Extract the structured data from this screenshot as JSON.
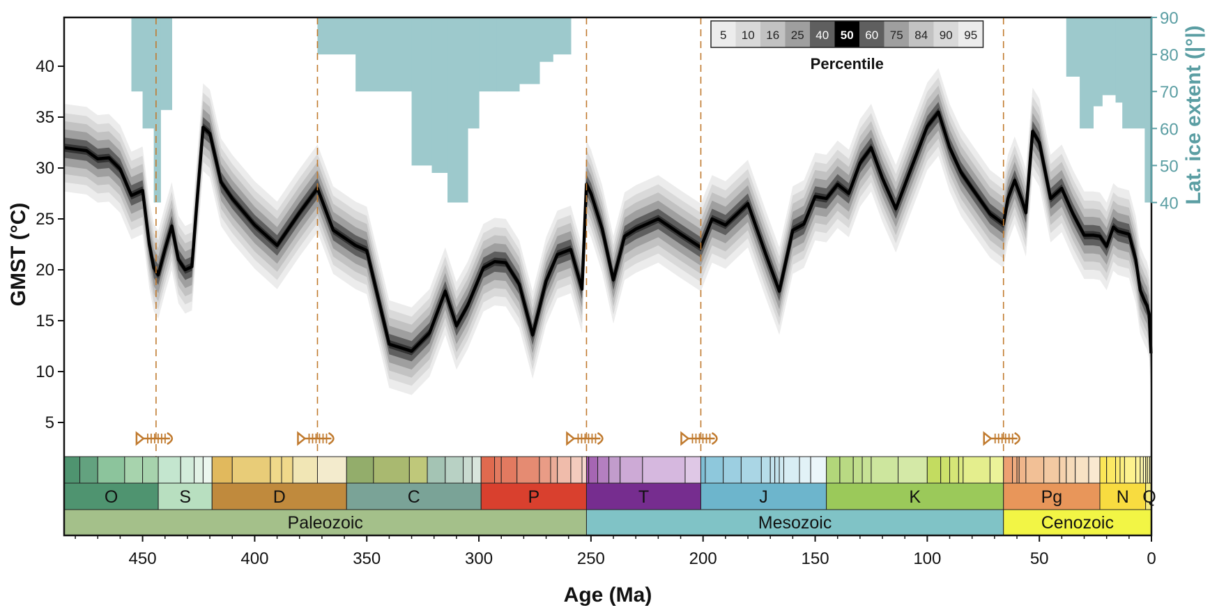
{
  "chart_data": {
    "type": "area",
    "xlabel": "Age (Ma)",
    "ylabel": "GMST (°C)",
    "y2label": "Lat. ice extent (|°|)",
    "xlim": [
      485,
      0
    ],
    "x_ticks": [
      450,
      400,
      350,
      300,
      250,
      200,
      150,
      100,
      50,
      0
    ],
    "y_ticks": [
      5,
      10,
      15,
      20,
      25,
      30,
      35,
      40
    ],
    "y2_ticks": [
      90,
      80,
      70,
      60,
      50,
      40
    ],
    "legend": {
      "title": "Percentile",
      "placement": "top-center",
      "labels": [
        "5",
        "10",
        "16",
        "25",
        "40",
        "50",
        "60",
        "75",
        "84",
        "90",
        "95"
      ],
      "colors": [
        "#ececec",
        "#d9d9d9",
        "#c2c2c2",
        "#9f9f9f",
        "#5f5f5f",
        "#000000",
        "#5f5f5f",
        "#9f9f9f",
        "#c2c2c2",
        "#d9d9d9",
        "#ececec"
      ]
    },
    "series": [
      {
        "percentile": "50",
        "x": [
          485,
          475,
          470,
          465,
          460,
          455,
          450,
          447,
          445,
          443,
          440,
          437,
          434,
          431,
          428,
          426,
          423,
          420,
          415,
          410,
          400,
          390,
          380,
          372,
          365,
          355,
          350,
          340,
          330,
          322,
          315,
          310,
          305,
          298,
          293,
          288,
          282,
          276,
          270,
          265,
          259,
          254,
          252,
          250,
          245,
          240,
          235,
          230,
          220,
          210,
          201,
          196,
          190,
          180,
          172,
          166,
          160,
          155,
          150,
          145,
          140,
          135,
          130,
          125,
          120,
          114,
          108,
          100,
          95,
          90,
          85,
          80,
          72,
          66,
          64,
          61,
          58,
          56,
          53,
          50,
          45,
          40,
          35,
          30,
          26,
          23,
          20,
          17,
          15,
          10,
          7,
          5,
          3,
          2,
          1,
          0.5,
          0.2
        ],
        "values": [
          32.0,
          31.7,
          30.9,
          31.0,
          29.9,
          27.3,
          27.8,
          22.5,
          20.2,
          19.5,
          22.0,
          24.3,
          21.0,
          20.0,
          20.3,
          26.0,
          34.0,
          33.4,
          28.6,
          27.0,
          24.4,
          22.4,
          25.6,
          28.0,
          23.9,
          22.4,
          21.9,
          12.7,
          12.0,
          13.8,
          17.9,
          14.5,
          16.5,
          20.2,
          20.8,
          20.7,
          18.6,
          13.6,
          18.9,
          21.5,
          22.0,
          18.1,
          28.4,
          27.5,
          24.0,
          19.0,
          23.3,
          24.0,
          25.0,
          23.5,
          22.2,
          25.0,
          24.4,
          26.5,
          21.5,
          17.9,
          23.9,
          24.5,
          27.2,
          27.0,
          28.4,
          27.5,
          30.5,
          32.0,
          29.0,
          26.0,
          29.5,
          34.1,
          35.5,
          32.0,
          29.6,
          28.0,
          25.5,
          24.5,
          27.0,
          28.8,
          27.0,
          25.6,
          33.6,
          32.5,
          27.0,
          28.0,
          25.5,
          23.4,
          23.4,
          23.3,
          22.3,
          24.2,
          23.8,
          23.5,
          21.0,
          18.0,
          16.9,
          16.5,
          15.6,
          13.0,
          11.8
        ]
      }
    ],
    "band_half_widths": {
      "45_55": 0.4,
      "40_60": 1.0,
      "25_75": 1.8,
      "16_84": 2.6,
      "10_90": 3.4,
      "5_95": 4.3
    },
    "ice_extent": {
      "unit": "|°| latitude",
      "baseline": 90,
      "segments": [
        {
          "x": [
            455,
            450
          ],
          "lat": 70
        },
        {
          "x": [
            450,
            445
          ],
          "lat": 60
        },
        {
          "x": [
            445,
            442
          ],
          "lat": 40
        },
        {
          "x": [
            442,
            437
          ],
          "lat": 65
        },
        {
          "x": [
            372,
            355
          ],
          "lat": 80
        },
        {
          "x": [
            355,
            330
          ],
          "lat": 70
        },
        {
          "x": [
            330,
            321
          ],
          "lat": 50
        },
        {
          "x": [
            321,
            314
          ],
          "lat": 48
        },
        {
          "x": [
            314,
            305
          ],
          "lat": 40
        },
        {
          "x": [
            305,
            300
          ],
          "lat": 60
        },
        {
          "x": [
            300,
            292
          ],
          "lat": 70
        },
        {
          "x": [
            292,
            282
          ],
          "lat": 70
        },
        {
          "x": [
            282,
            273
          ],
          "lat": 72
        },
        {
          "x": [
            273,
            267
          ],
          "lat": 78
        },
        {
          "x": [
            267,
            259
          ],
          "lat": 80
        },
        {
          "x": [
            38,
            32
          ],
          "lat": 74
        },
        {
          "x": [
            32,
            26
          ],
          "lat": 60
        },
        {
          "x": [
            26,
            22
          ],
          "lat": 66
        },
        {
          "x": [
            22,
            16
          ],
          "lat": 69
        },
        {
          "x": [
            16,
            13
          ],
          "lat": 67
        },
        {
          "x": [
            13,
            3
          ],
          "lat": 60
        },
        {
          "x": [
            3,
            0
          ],
          "lat": 40
        }
      ]
    },
    "extinction_events": [
      444,
      372,
      252,
      201,
      66
    ],
    "periods": [
      {
        "label": "O",
        "start": 485,
        "end": 443,
        "color": "#4f9470"
      },
      {
        "label": "S",
        "start": 443,
        "end": 419,
        "color": "#b8dfc0"
      },
      {
        "label": "D",
        "start": 419,
        "end": 359,
        "color": "#c08a3d"
      },
      {
        "label": "C",
        "start": 359,
        "end": 299,
        "color": "#7aa397"
      },
      {
        "label": "P",
        "start": 299,
        "end": 252,
        "color": "#d9402e"
      },
      {
        "label": "T",
        "start": 252,
        "end": 201,
        "color": "#762d8f"
      },
      {
        "label": "J",
        "start": 201,
        "end": 145,
        "color": "#6db5cc"
      },
      {
        "label": "K",
        "start": 145,
        "end": 66,
        "color": "#9bc95a"
      },
      {
        "label": "Pg",
        "start": 66,
        "end": 23,
        "color": "#e8965a"
      },
      {
        "label": "N",
        "start": 23,
        "end": 2.6,
        "color": "#f8dc40"
      },
      {
        "label": "Q",
        "start": 2.6,
        "end": 0,
        "color": "#f6ec7e"
      }
    ],
    "eras": [
      {
        "label": "Paleozoic",
        "start": 485,
        "end": 252,
        "color": "#a4c08a"
      },
      {
        "label": "Mesozoic",
        "start": 252,
        "end": 66,
        "color": "#80c3c6"
      },
      {
        "label": "Cenozoic",
        "start": 66,
        "end": 0,
        "color": "#f2f545"
      }
    ],
    "epochs": [
      {
        "start": 485,
        "end": 478,
        "color": "#4f9470"
      },
      {
        "start": 478,
        "end": 470,
        "color": "#63a27f"
      },
      {
        "start": 470,
        "end": 458,
        "color": "#8cc49c"
      },
      {
        "start": 458,
        "end": 450,
        "color": "#a7d3ad"
      },
      {
        "start": 450,
        "end": 443,
        "color": "#a7d3ad"
      },
      {
        "start": 443,
        "end": 433,
        "color": "#c4e6cf"
      },
      {
        "start": 433,
        "end": 427,
        "color": "#d3ecdb"
      },
      {
        "start": 427,
        "end": 423,
        "color": "#e2f2e6"
      },
      {
        "start": 423,
        "end": 419,
        "color": "#ecf7ef"
      },
      {
        "start": 419,
        "end": 410,
        "color": "#e1b95d"
      },
      {
        "start": 410,
        "end": 393,
        "color": "#e8cc78"
      },
      {
        "start": 393,
        "end": 388,
        "color": "#f0d98a"
      },
      {
        "start": 388,
        "end": 383,
        "color": "#f0d98a"
      },
      {
        "start": 383,
        "end": 372,
        "color": "#f1e6b5"
      },
      {
        "start": 372,
        "end": 359,
        "color": "#f3ebcd"
      },
      {
        "start": 359,
        "end": 347,
        "color": "#93ad6b"
      },
      {
        "start": 347,
        "end": 331,
        "color": "#a9b970"
      },
      {
        "start": 331,
        "end": 323,
        "color": "#bfc87a"
      },
      {
        "start": 323,
        "end": 315,
        "color": "#a4c4b4"
      },
      {
        "start": 315,
        "end": 307,
        "color": "#b8d1c4"
      },
      {
        "start": 307,
        "end": 303,
        "color": "#c9dbd0"
      },
      {
        "start": 303,
        "end": 299,
        "color": "#d8e5dc"
      },
      {
        "start": 299,
        "end": 293,
        "color": "#e06a4f"
      },
      {
        "start": 293,
        "end": 290,
        "color": "#e37a60"
      },
      {
        "start": 290,
        "end": 283,
        "color": "#e37a60"
      },
      {
        "start": 283,
        "end": 273,
        "color": "#e58b72"
      },
      {
        "start": 273,
        "end": 268,
        "color": "#e99c86"
      },
      {
        "start": 268,
        "end": 265,
        "color": "#ecac98"
      },
      {
        "start": 265,
        "end": 259,
        "color": "#f0bcab"
      },
      {
        "start": 259,
        "end": 254,
        "color": "#f3cbbd"
      },
      {
        "start": 254,
        "end": 252,
        "color": "#f6d7cc"
      },
      {
        "start": 252,
        "end": 251,
        "color": "#9c4ea8"
      },
      {
        "start": 251,
        "end": 247,
        "color": "#a666b3"
      },
      {
        "start": 247,
        "end": 242,
        "color": "#b47fc0"
      },
      {
        "start": 242,
        "end": 237,
        "color": "#c29ccc"
      },
      {
        "start": 237,
        "end": 227,
        "color": "#cdaad6"
      },
      {
        "start": 227,
        "end": 208,
        "color": "#d6b8df"
      },
      {
        "start": 208,
        "end": 201,
        "color": "#dfc8e6"
      },
      {
        "start": 201,
        "end": 199,
        "color": "#7fbfd5"
      },
      {
        "start": 199,
        "end": 191,
        "color": "#8ec8dc"
      },
      {
        "start": 191,
        "end": 183,
        "color": "#9ccfe1"
      },
      {
        "start": 183,
        "end": 174,
        "color": "#aad6e5"
      },
      {
        "start": 174,
        "end": 170,
        "color": "#b7dde9"
      },
      {
        "start": 170,
        "end": 168,
        "color": "#c3e3ed"
      },
      {
        "start": 168,
        "end": 166,
        "color": "#c3e3ed"
      },
      {
        "start": 166,
        "end": 164,
        "color": "#d0e9f1"
      },
      {
        "start": 164,
        "end": 157,
        "color": "#d8edf4"
      },
      {
        "start": 157,
        "end": 152,
        "color": "#e2f2f7"
      },
      {
        "start": 152,
        "end": 145,
        "color": "#ebf6fa"
      },
      {
        "start": 145,
        "end": 139,
        "color": "#b2d67a"
      },
      {
        "start": 139,
        "end": 133,
        "color": "#b9da83"
      },
      {
        "start": 133,
        "end": 129,
        "color": "#c0de8c"
      },
      {
        "start": 129,
        "end": 125,
        "color": "#c7e295"
      },
      {
        "start": 125,
        "end": 113,
        "color": "#cde69e"
      },
      {
        "start": 113,
        "end": 100,
        "color": "#d4e9a7"
      },
      {
        "start": 100,
        "end": 94,
        "color": "#c3dc60"
      },
      {
        "start": 94,
        "end": 90,
        "color": "#cde16b"
      },
      {
        "start": 90,
        "end": 86,
        "color": "#d6e677"
      },
      {
        "start": 86,
        "end": 84,
        "color": "#ddea82"
      },
      {
        "start": 84,
        "end": 72,
        "color": "#e4ee8d"
      },
      {
        "start": 72,
        "end": 66,
        "color": "#ecf399"
      },
      {
        "start": 66,
        "end": 62,
        "color": "#eda072"
      },
      {
        "start": 62,
        "end": 60,
        "color": "#efac7f"
      },
      {
        "start": 60,
        "end": 59,
        "color": "#efac7f"
      },
      {
        "start": 59,
        "end": 56,
        "color": "#f0b68b"
      },
      {
        "start": 56,
        "end": 48,
        "color": "#f2c096"
      },
      {
        "start": 48,
        "end": 41,
        "color": "#f3c9a2"
      },
      {
        "start": 41,
        "end": 38,
        "color": "#f5d2ae"
      },
      {
        "start": 38,
        "end": 34,
        "color": "#f6dbba"
      },
      {
        "start": 34,
        "end": 28,
        "color": "#f8e2c4"
      },
      {
        "start": 28,
        "end": 23,
        "color": "#f9e9d0"
      },
      {
        "start": 23,
        "end": 20,
        "color": "#fbe657"
      },
      {
        "start": 20,
        "end": 16,
        "color": "#fce964"
      },
      {
        "start": 16,
        "end": 14,
        "color": "#fcec72"
      },
      {
        "start": 14,
        "end": 12,
        "color": "#fcef80"
      },
      {
        "start": 12,
        "end": 7,
        "color": "#fdf28e"
      },
      {
        "start": 7,
        "end": 5,
        "color": "#fdf49b"
      },
      {
        "start": 5,
        "end": 3.6,
        "color": "#fef7aa"
      },
      {
        "start": 3.6,
        "end": 2.6,
        "color": "#fef9b9"
      },
      {
        "start": 2.6,
        "end": 1.8,
        "color": "#fbf3a3"
      },
      {
        "start": 1.8,
        "end": 0.8,
        "color": "#fcf6b4"
      },
      {
        "start": 0.8,
        "end": 0.1,
        "color": "#fdf9c7"
      },
      {
        "start": 0.1,
        "end": 0,
        "color": "#fefcdc"
      }
    ],
    "colors": {
      "median_line": "#000000",
      "ice": "#9dc9cc",
      "ice_axis": "#5b9ea3",
      "extinction": "#c07a2e"
    }
  }
}
